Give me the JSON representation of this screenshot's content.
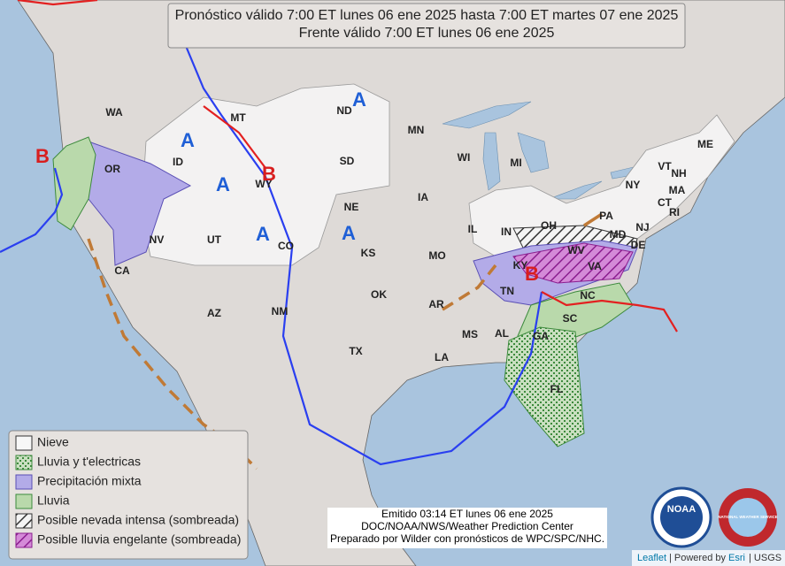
{
  "header": {
    "line1": "Pronóstico válido 7:00 ET lunes 06 ene 2025 hasta 7:00 ET martes 07 ene 2025",
    "line2": "Frente válido 7:00 ET lunes 06 ene 2025"
  },
  "states": [
    "WA",
    "OR",
    "ID",
    "MT",
    "WY",
    "NV",
    "UT",
    "CO",
    "CA",
    "AZ",
    "NM",
    "ND",
    "SD",
    "NE",
    "KS",
    "OK",
    "TX",
    "MN",
    "IA",
    "MO",
    "AR",
    "LA",
    "WI",
    "IL",
    "MI",
    "IN",
    "OH",
    "KY",
    "TN",
    "MS",
    "AL",
    "GA",
    "FL",
    "SC",
    "NC",
    "VA",
    "WV",
    "PA",
    "NY",
    "MD",
    "DE",
    "NJ",
    "VT",
    "NH",
    "ME",
    "MA",
    "CT",
    "RI"
  ],
  "pressure_centers": [
    "B",
    "A",
    "A",
    "A",
    "A",
    "A",
    "B",
    "B"
  ],
  "legend": [
    "Nieve",
    "Lluvia y t'electricas",
    "Precipitación mixta",
    "Lluvia",
    "Posible nevada intensa (sombreada)",
    "Posible lluvia engelante (sombreada)"
  ],
  "footer": {
    "issued": "Emitido 03:14 ET lunes 06 ene 2025",
    "source": "DOC/NOAA/NWS/Weather Prediction Center",
    "prepared": "Preparado por Wilder con pronósticos de WPC/SPC/NHC."
  },
  "logos": [
    "NOAA",
    "NATIONAL WEATHER SERVICE"
  ],
  "attribution": [
    "Leaflet",
    "| Powered by",
    "Esri",
    "| USGS"
  ]
}
